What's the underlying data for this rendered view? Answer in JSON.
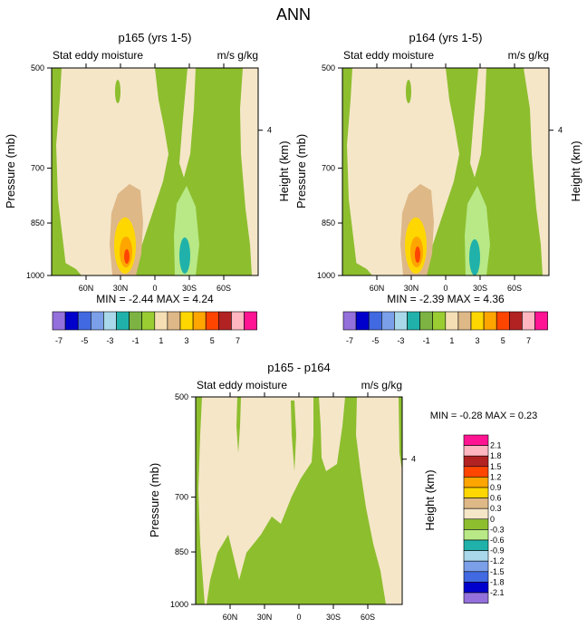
{
  "page_title": "ANN",
  "colors": {
    "scale": [
      "#9370DB",
      "#0000CD",
      "#4169E1",
      "#7B9FE8",
      "#A8D8EA",
      "#20B2AA",
      "#7CB342",
      "#9ACD32",
      "#F5DEB3",
      "#DEB887",
      "#FFD700",
      "#FFA500",
      "#FF4500",
      "#B22222",
      "#FFB6C1",
      "#FF1493"
    ],
    "diff_scale": [
      "#9370DB",
      "#0000CD",
      "#4169E1",
      "#7B9FE8",
      "#A8D8EA",
      "#20B2AA",
      "#B8E986",
      "#8DBE2E",
      "#F5E6C8",
      "#DEB887",
      "#FFD700",
      "#FFA500",
      "#FF4500",
      "#B22222",
      "#FFB6C1",
      "#FF1493"
    ]
  },
  "chart_data": [
    {
      "type": "heatmap",
      "title": "p165 (yrs 1-5)",
      "left_label": "Stat eddy moisture",
      "right_label": "m/s g/kg",
      "ylabel": "Pressure (mb)",
      "ylabel_right": "Height (km)",
      "y_ticks": [
        "500",
        "700",
        "850",
        "1000"
      ],
      "y_right_ticks": [
        "4"
      ],
      "x_ticks": [
        "60N",
        "30N",
        "0",
        "30S",
        "60S"
      ],
      "x_range": [
        90,
        -90
      ],
      "y_range": [
        1000,
        500
      ],
      "stats": "MIN = -2.44  MAX =  4.24",
      "colorbar_labels": [
        "-7",
        "-5",
        "-3",
        "-1",
        "1",
        "3",
        "5",
        "7"
      ]
    },
    {
      "type": "heatmap",
      "title": "p164 (yrs 1-5)",
      "left_label": "Stat eddy moisture",
      "right_label": "m/s g/kg",
      "ylabel": "Pressure (mb)",
      "ylabel_right": "Height (km)",
      "y_ticks": [
        "500",
        "700",
        "850",
        "1000"
      ],
      "y_right_ticks": [
        "4"
      ],
      "x_ticks": [
        "60N",
        "30N",
        "0",
        "30S",
        "60S"
      ],
      "x_range": [
        90,
        -90
      ],
      "y_range": [
        1000,
        500
      ],
      "stats": "MIN = -2.39  MAX =  4.36",
      "colorbar_labels": [
        "-7",
        "-5",
        "-3",
        "-1",
        "1",
        "3",
        "5",
        "7"
      ]
    },
    {
      "type": "heatmap",
      "title": "p165 - p164",
      "left_label": "Stat eddy moisture",
      "right_label": "m/s g/kg",
      "ylabel": "Pressure (mb)",
      "ylabel_right": "Height (km)",
      "y_ticks": [
        "500",
        "700",
        "850",
        "1000"
      ],
      "y_right_ticks": [
        "4"
      ],
      "x_ticks": [
        "60N",
        "30N",
        "0",
        "30S",
        "60S"
      ],
      "x_range": [
        90,
        -90
      ],
      "y_range": [
        1000,
        500
      ],
      "stats": "MIN =  -0.28  MAX =   0.23",
      "colorbar_labels": [
        "2.1",
        "1.8",
        "1.5",
        "1.2",
        "0.9",
        "0.6",
        "0.3",
        "0",
        "-0.3",
        "-0.6",
        "-0.9",
        "-1.2",
        "-1.5",
        "-1.8",
        "-2.1"
      ]
    }
  ]
}
